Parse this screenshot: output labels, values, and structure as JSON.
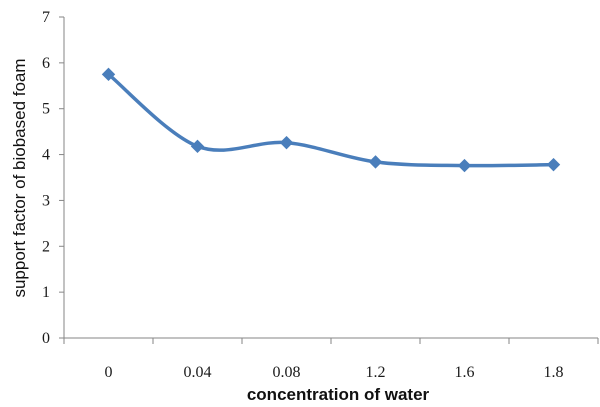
{
  "chart_data": {
    "type": "line",
    "categories": [
      "0",
      "0.04",
      "0.08",
      "1.2",
      "1.6",
      "1.8"
    ],
    "series": [
      {
        "values": [
          5.75,
          4.18,
          4.26,
          3.84,
          3.76,
          3.78
        ],
        "color": "#4a7ebb",
        "marker": "diamond",
        "smooth": true
      }
    ],
    "title": "",
    "xlabel": "concentration of water",
    "ylabel": "support factor of biobased foam",
    "ylim": [
      0,
      7
    ],
    "yticks": [
      0,
      1,
      2,
      3,
      4,
      5,
      6,
      7
    ],
    "grid": false,
    "legend": "none"
  }
}
